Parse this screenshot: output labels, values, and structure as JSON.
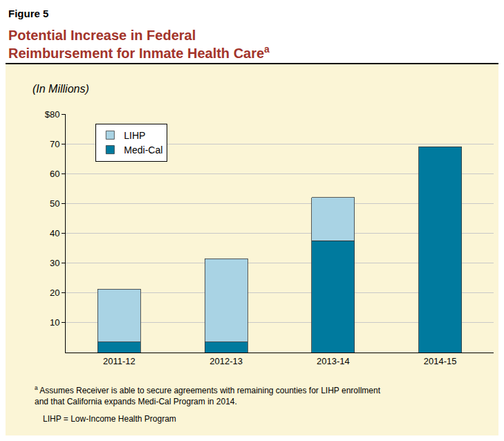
{
  "chart_data": {
    "type": "bar",
    "figure_label": "Figure 5",
    "title": "Potential Increase in Federal Reimbursement for Inmate Health Care",
    "title_marker": "a",
    "subtitle": "(In Millions)",
    "categories": [
      "2011-12",
      "2012-13",
      "2013-14",
      "2014-15"
    ],
    "series": [
      {
        "name": "Medi-Cal",
        "color": "#007a9e",
        "values": [
          3.5,
          3.5,
          37.5,
          69
        ]
      },
      {
        "name": "LIHP",
        "color": "#a9d3e4",
        "values": [
          17.8,
          28,
          14.5,
          null
        ]
      }
    ],
    "stacked": true,
    "legend": "top-left",
    "grid": true,
    "ylim": [
      0,
      80
    ],
    "yticks": [
      10,
      20,
      30,
      40,
      50,
      60,
      70,
      {
        "value": 80,
        "label": "$80"
      }
    ],
    "footnote_marker": "a",
    "footnote": "Assumes Receiver is able to secure agreements with remaining counties for LIHP enrollment and that California expands Medi-Cal Program in 2014.",
    "note": "LIHP = Low-Income Health Program"
  }
}
